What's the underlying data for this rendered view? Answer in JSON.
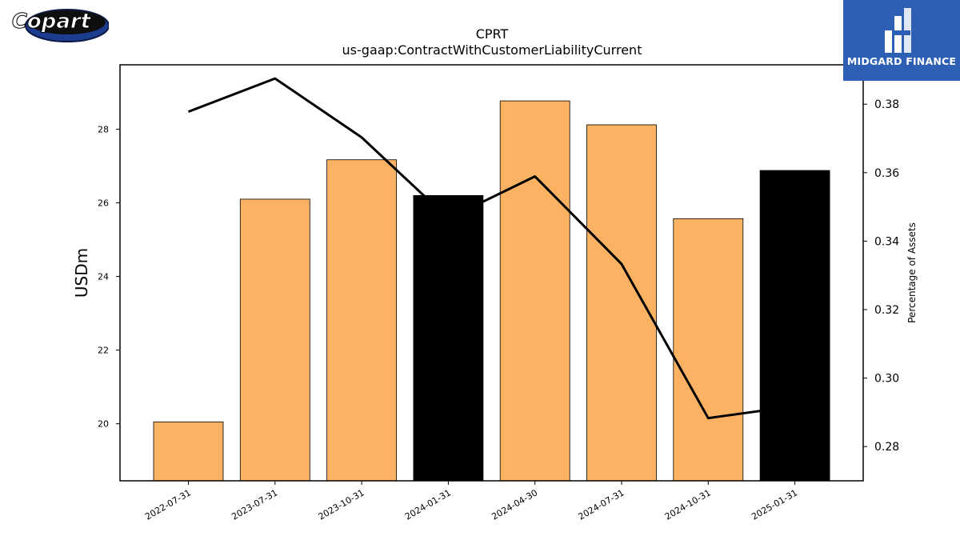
{
  "logos": {
    "left_text": "Copart",
    "right_text": "MIDGARD FINANCE"
  },
  "chart_data": {
    "type": "bar",
    "title": "CPRT",
    "subtitle": "us-gaap:ContractWithCustomerLiabilityCurrent",
    "ylabel": "USDm",
    "y2label": "Percentage of Assets",
    "categories": [
      "2022-07-31",
      "2023-07-31",
      "2023-10-31",
      "2024-01-31",
      "2024-04-30",
      "2024-07-31",
      "2024-10-31",
      "2025-01-31"
    ],
    "series": [
      {
        "type": "bar",
        "axis": "left",
        "values": [
          20.05,
          26.1,
          27.17,
          26.2,
          28.77,
          28.12,
          25.57,
          26.88
        ],
        "colors": [
          "#fbb363",
          "#fbb363",
          "#fbb363",
          "#000000",
          "#fbb363",
          "#fbb363",
          "#fbb363",
          "#000000"
        ]
      },
      {
        "type": "line",
        "axis": "right",
        "color": "#000000",
        "values": [
          0.3778,
          0.3875,
          0.3703,
          0.3466,
          0.3589,
          0.3333,
          0.2883,
          0.2918
        ]
      }
    ],
    "ylim": [
      18.45,
      29.75
    ],
    "yticks": [
      20,
      22,
      24,
      26,
      28
    ],
    "y2lim": [
      0.27,
      0.3915
    ],
    "y2ticks": [
      0.28,
      0.3,
      0.32,
      0.34,
      0.36,
      0.38
    ],
    "grid": false,
    "legend": "none"
  }
}
